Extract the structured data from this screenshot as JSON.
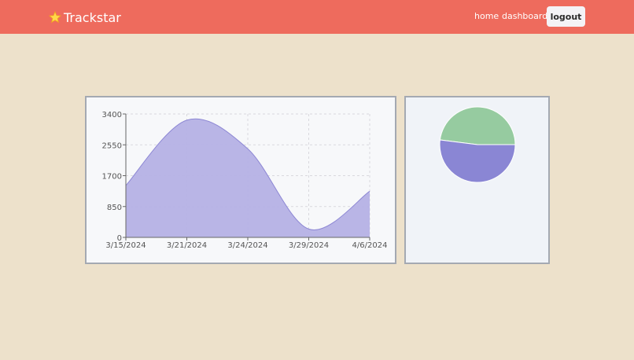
{
  "app": {
    "brand_name": "Trackstar",
    "brand_icon": "star-icon"
  },
  "nav": {
    "home": "home",
    "dashboard": "dashboard",
    "logout": "logout"
  },
  "colors": {
    "navbar": "#ee6b5d",
    "background": "#ede1cb",
    "area_fill": "#b5b1e5",
    "area_stroke": "#8d87d4",
    "pie_green": "#96cba0",
    "pie_purple": "#8a86d4"
  },
  "chart_data": [
    {
      "type": "area",
      "title": "",
      "xlabel": "",
      "ylabel": "",
      "x": [
        "3/15/2024",
        "3/21/2024",
        "3/24/2024",
        "3/29/2024",
        "4/6/2024"
      ],
      "values": [
        1430,
        3230,
        2440,
        230,
        1270
      ],
      "y_ticks": [
        0,
        850,
        1700,
        2550,
        3400
      ],
      "ylim": [
        0,
        3400
      ],
      "grid": true,
      "legend": "none"
    },
    {
      "type": "pie",
      "title": "",
      "slices": [
        {
          "value": 48,
          "color": "#96cba0"
        },
        {
          "value": 52,
          "color": "#8a86d4"
        }
      ],
      "legend": "none"
    }
  ]
}
